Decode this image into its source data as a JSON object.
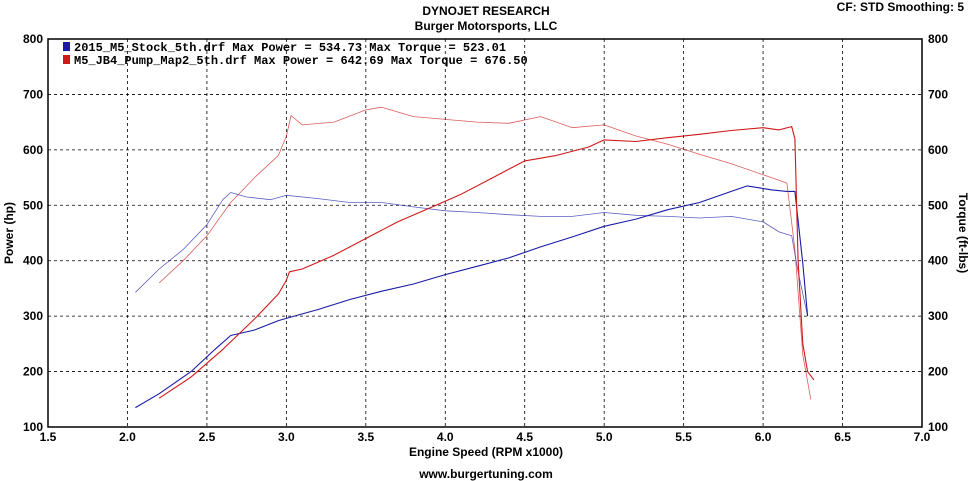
{
  "header": {
    "title": "DYNOJET RESEARCH",
    "subtitle": "Burger Motorsports, LLC",
    "settings": "CF: STD  Smoothing: 5",
    "url": "www.burgertuning.com"
  },
  "chart_data": {
    "type": "line",
    "xlabel": "Engine Speed (RPM x1000)",
    "ylabel_left": "Power (hp)",
    "ylabel_right": "Torque (ft-lbs)",
    "xlim": [
      1.5,
      7.0
    ],
    "ylim": [
      100,
      800
    ],
    "x_ticks": [
      "1.5",
      "2.0",
      "2.5",
      "3.0",
      "3.5",
      "4.0",
      "4.5",
      "5.0",
      "5.5",
      "6.0",
      "6.5",
      "7.0"
    ],
    "y_ticks": [
      "100",
      "200",
      "300",
      "400",
      "500",
      "600",
      "700",
      "800"
    ],
    "grid": true,
    "legend_position": "top-left",
    "legend": [
      "2015_M5_Stock_5th.drf Max Power = 534.73    Max Torque = 523.01",
      "M5_JB4_Pump_Map2_5th.drf Max Power = 642.69    Max Torque = 676.50"
    ],
    "colors": {
      "stock": "#1a1aa6",
      "tuned": "#d01818"
    },
    "series": [
      {
        "name": "2015_M5_Stock_5th.drf",
        "key": "stock_power",
        "kind": "power",
        "x": [
          2.05,
          2.2,
          2.4,
          2.55,
          2.65,
          2.8,
          2.95,
          3.05,
          3.2,
          3.4,
          3.6,
          3.8,
          4.0,
          4.2,
          4.4,
          4.6,
          4.8,
          5.0,
          5.2,
          5.4,
          5.6,
          5.8,
          5.9,
          6.05,
          6.15,
          6.2,
          6.25,
          6.28
        ],
        "y": [
          135,
          160,
          200,
          240,
          265,
          275,
          292,
          300,
          312,
          330,
          345,
          358,
          375,
          390,
          405,
          425,
          443,
          462,
          475,
          492,
          505,
          525,
          535,
          528,
          525,
          525,
          395,
          300
        ]
      },
      {
        "name": "2015_M5_Stock_5th.drf",
        "key": "stock_torque",
        "kind": "torque",
        "x": [
          2.05,
          2.2,
          2.35,
          2.5,
          2.6,
          2.65,
          2.75,
          2.9,
          3.0,
          3.2,
          3.4,
          3.6,
          3.8,
          4.0,
          4.2,
          4.4,
          4.6,
          4.8,
          5.0,
          5.2,
          5.4,
          5.6,
          5.8,
          6.0,
          6.1,
          6.18,
          6.22,
          6.28
        ],
        "y": [
          343,
          385,
          420,
          465,
          510,
          523,
          515,
          510,
          518,
          512,
          505,
          505,
          497,
          490,
          487,
          483,
          480,
          480,
          487,
          482,
          480,
          477,
          480,
          470,
          452,
          445,
          380,
          300
        ]
      },
      {
        "name": "M5_JB4_Pump_Map2_5th.drf",
        "key": "tuned_power",
        "kind": "power",
        "x": [
          2.2,
          2.4,
          2.6,
          2.8,
          2.95,
          3.0,
          3.02,
          3.1,
          3.3,
          3.5,
          3.7,
          3.9,
          4.1,
          4.3,
          4.5,
          4.7,
          4.9,
          5.0,
          5.2,
          5.4,
          5.6,
          5.8,
          6.0,
          6.1,
          6.18,
          6.2,
          6.22,
          6.25,
          6.28,
          6.32
        ],
        "y": [
          152,
          190,
          240,
          295,
          340,
          365,
          380,
          385,
          410,
          440,
          470,
          495,
          520,
          550,
          580,
          590,
          605,
          618,
          615,
          622,
          628,
          635,
          640,
          636,
          642,
          620,
          400,
          250,
          200,
          185
        ]
      },
      {
        "name": "M5_JB4_Pump_Map2_5th.drf",
        "key": "tuned_torque",
        "kind": "torque",
        "x": [
          2.2,
          2.35,
          2.5,
          2.65,
          2.8,
          2.95,
          3.0,
          3.03,
          3.1,
          3.3,
          3.5,
          3.6,
          3.8,
          4.0,
          4.2,
          4.4,
          4.6,
          4.8,
          5.0,
          5.2,
          5.4,
          5.6,
          5.8,
          6.0,
          6.1,
          6.15,
          6.2,
          6.25,
          6.3
        ],
        "y": [
          360,
          400,
          445,
          505,
          550,
          590,
          625,
          662,
          645,
          650,
          672,
          677,
          660,
          655,
          650,
          648,
          660,
          640,
          645,
          625,
          610,
          592,
          575,
          555,
          545,
          540,
          420,
          230,
          150
        ]
      }
    ]
  }
}
